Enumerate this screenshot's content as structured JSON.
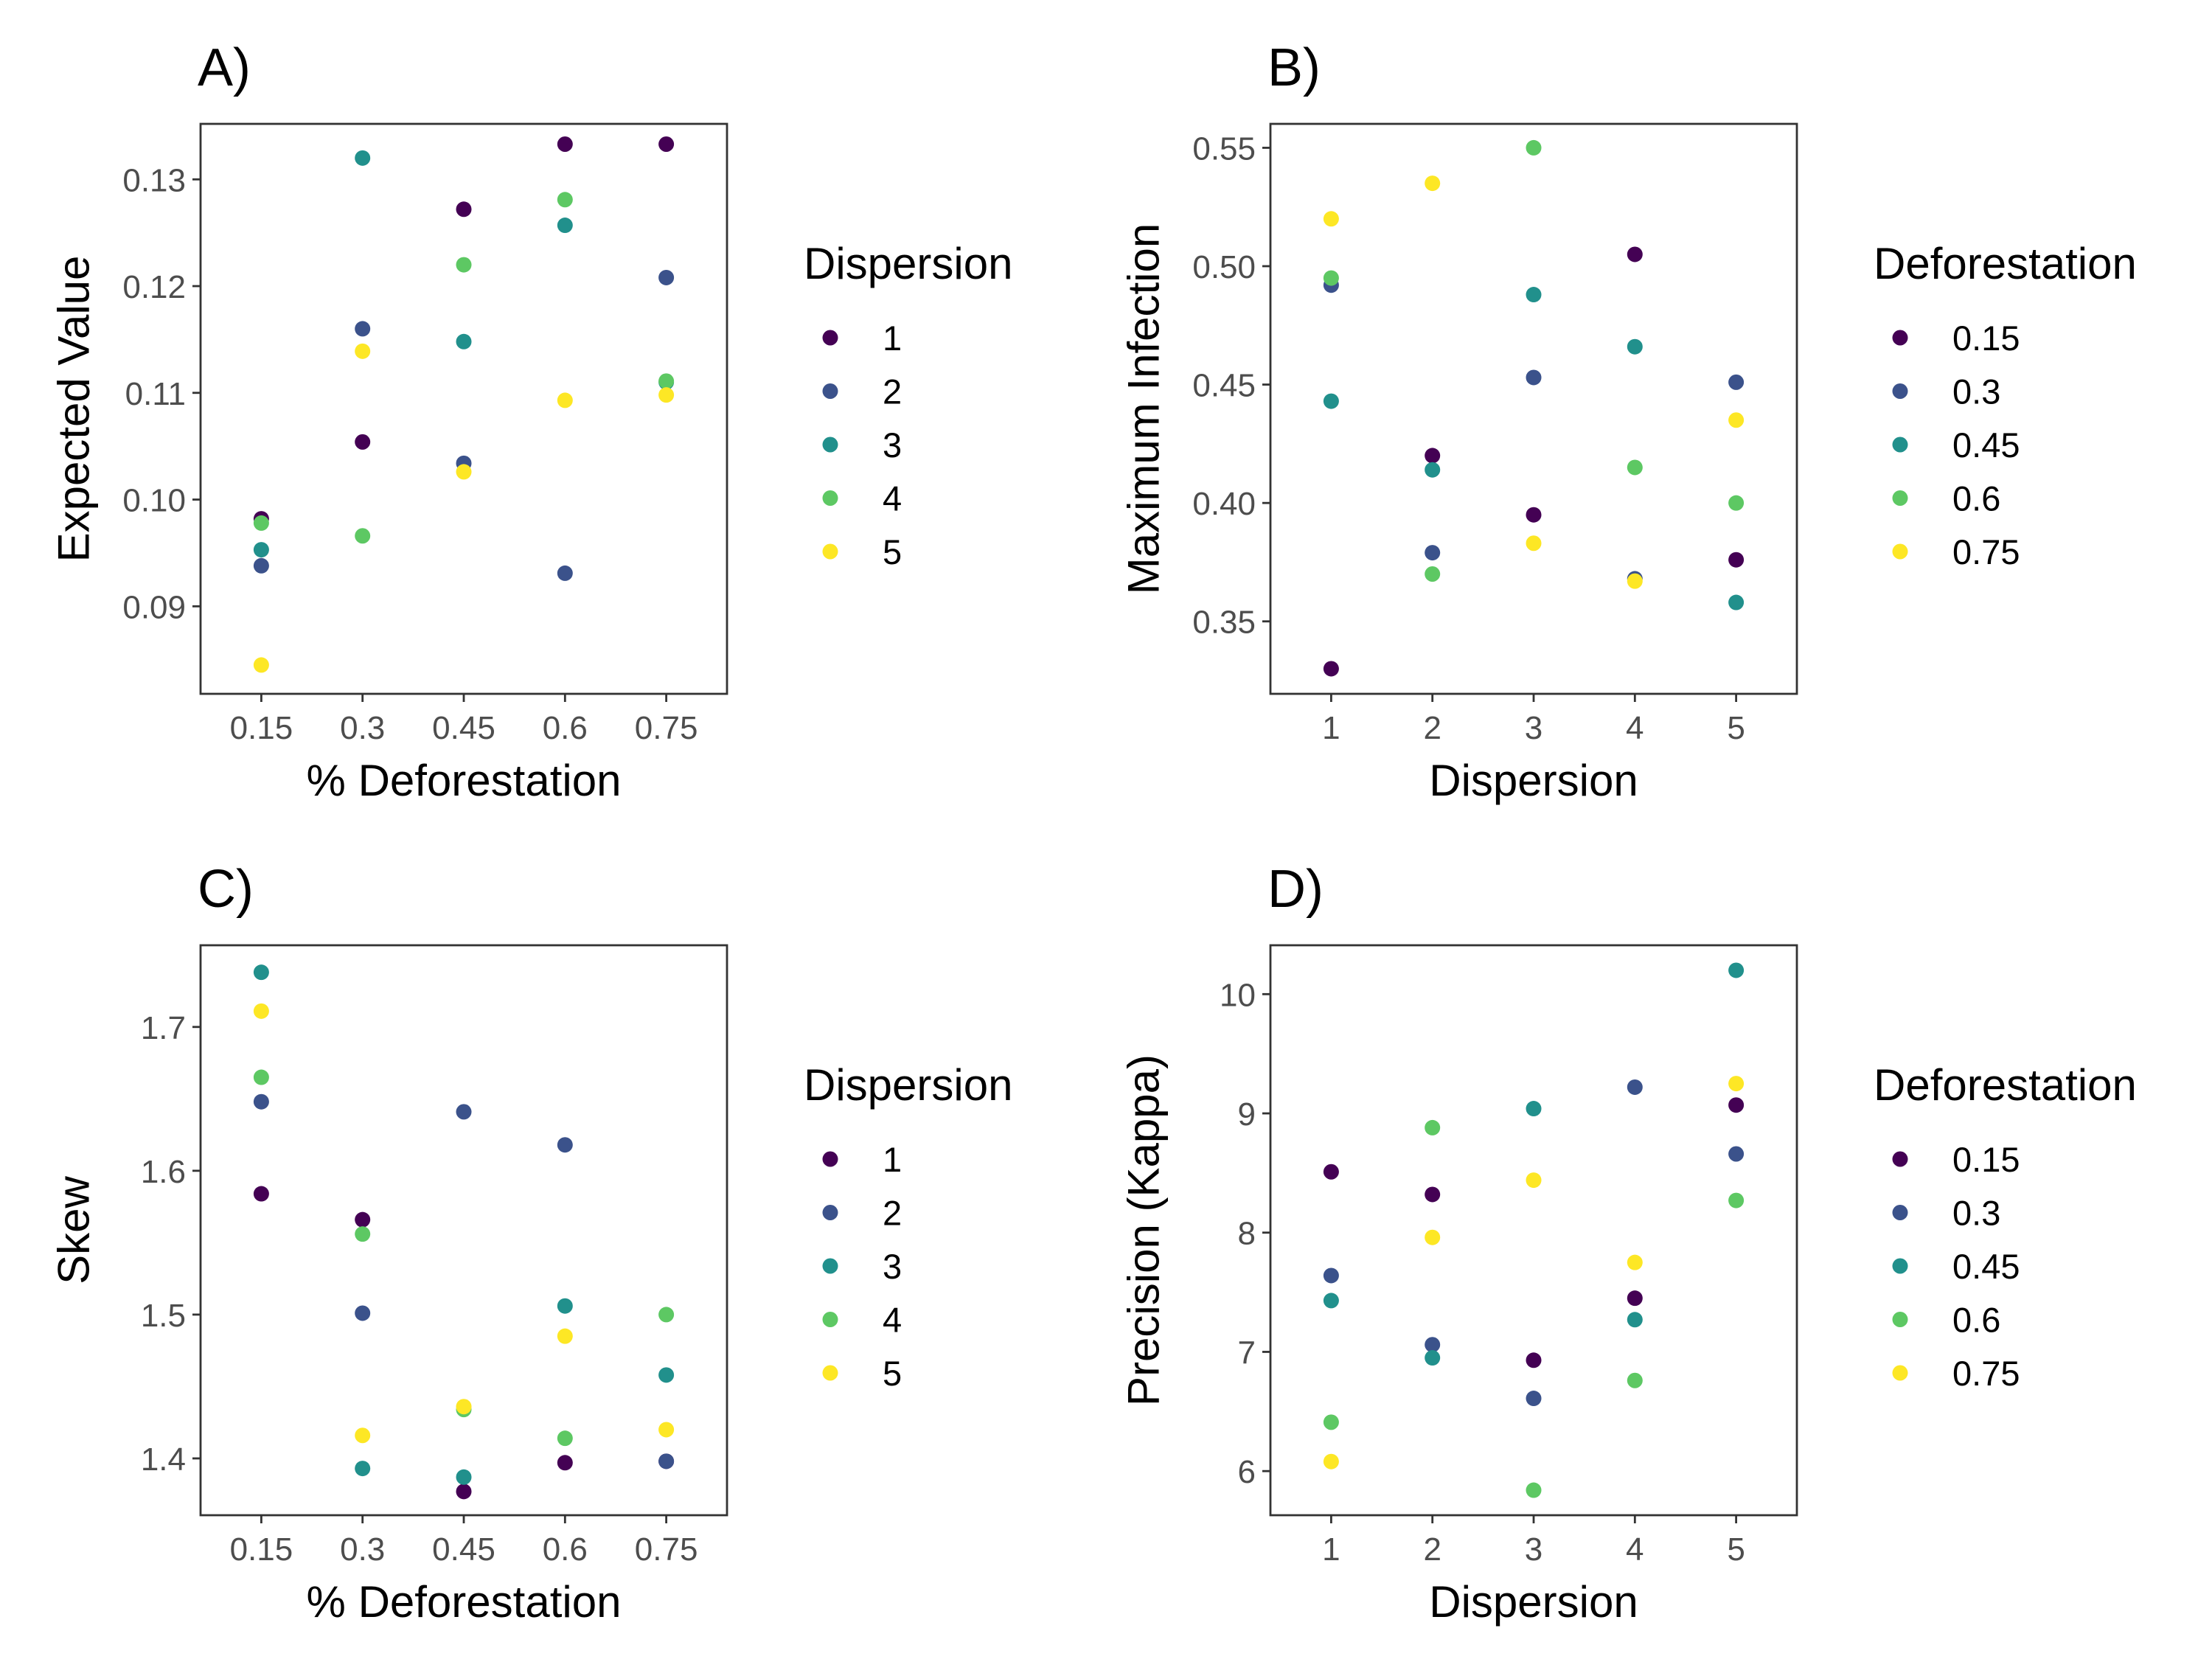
{
  "palette": {
    "1": "#440154",
    "2": "#3b528b",
    "3": "#21908c",
    "4": "#5dc863",
    "5": "#fde725"
  },
  "chart_data": [
    {
      "tag": "A)",
      "type": "scatter",
      "xlabel": "% Deforestation",
      "ylabel": "Expected Value",
      "x_ticks": [
        "0.15",
        "0.3",
        "0.45",
        "0.6",
        "0.75"
      ],
      "y_ticks": [
        "0.09",
        "0.10",
        "0.11",
        "0.12",
        "0.13"
      ],
      "ylim": [
        0.0818,
        0.1352
      ],
      "legend": {
        "title": "Dispersion",
        "labels": [
          "1",
          "2",
          "3",
          "4",
          "5"
        ],
        "placement": "right"
      },
      "series": [
        {
          "name": "1",
          "values": [
            0.0982,
            0.1054,
            0.1272,
            0.1333,
            0.1333
          ]
        },
        {
          "name": "2",
          "values": [
            0.0938,
            0.116,
            0.1034,
            0.0931,
            0.1208
          ]
        },
        {
          "name": "3",
          "values": [
            0.0953,
            0.132,
            0.1148,
            0.1257,
            0.111
          ]
        },
        {
          "name": "4",
          "values": [
            0.0978,
            0.0966,
            0.122,
            0.1281,
            0.1111
          ]
        },
        {
          "name": "5",
          "values": [
            0.0845,
            0.1139,
            0.1026,
            0.1093,
            0.1098
          ]
        }
      ]
    },
    {
      "tag": "B)",
      "type": "scatter",
      "xlabel": "Dispersion",
      "ylabel": "Maximum Infection",
      "x_ticks": [
        "1",
        "2",
        "3",
        "4",
        "5"
      ],
      "y_ticks": [
        "0.35",
        "0.40",
        "0.45",
        "0.50",
        "0.55"
      ],
      "ylim": [
        0.3194,
        0.5601
      ],
      "legend": {
        "title": "Deforestation",
        "labels": [
          "0.15",
          "0.3",
          "0.45",
          "0.6",
          "0.75"
        ],
        "placement": "right"
      },
      "series": [
        {
          "name": "0.15",
          "values": [
            0.33,
            0.42,
            0.395,
            0.505,
            0.376
          ]
        },
        {
          "name": "0.3",
          "values": [
            0.492,
            0.379,
            0.453,
            0.368,
            0.451
          ]
        },
        {
          "name": "0.45",
          "values": [
            0.443,
            0.414,
            0.488,
            0.466,
            0.358
          ]
        },
        {
          "name": "0.6",
          "values": [
            0.495,
            0.37,
            0.55,
            0.415,
            0.4
          ]
        },
        {
          "name": "0.75",
          "values": [
            0.52,
            0.535,
            0.383,
            0.367,
            0.435
          ]
        }
      ]
    },
    {
      "tag": "C)",
      "type": "scatter",
      "xlabel": "% Deforestation",
      "ylabel": "Skew",
      "x_ticks": [
        "0.15",
        "0.3",
        "0.45",
        "0.6",
        "0.75"
      ],
      "y_ticks": [
        "1.4",
        "1.5",
        "1.6",
        "1.7"
      ],
      "ylim": [
        1.3605,
        1.7568
      ],
      "legend": {
        "title": "Dispersion",
        "labels": [
          "1",
          "2",
          "3",
          "4",
          "5"
        ],
        "placement": "right"
      },
      "series": [
        {
          "name": "1",
          "values": [
            1.584,
            1.566,
            1.377,
            1.397,
            1.398
          ]
        },
        {
          "name": "2",
          "values": [
            1.648,
            1.501,
            1.641,
            1.618,
            1.398
          ]
        },
        {
          "name": "3",
          "values": [
            1.738,
            1.393,
            1.387,
            1.506,
            1.458
          ]
        },
        {
          "name": "4",
          "values": [
            1.665,
            1.556,
            1.434,
            1.414,
            1.5
          ]
        },
        {
          "name": "5",
          "values": [
            1.711,
            1.416,
            1.436,
            1.485,
            1.42
          ]
        }
      ]
    },
    {
      "tag": "D)",
      "type": "scatter",
      "xlabel": "Dispersion",
      "ylabel": "Precision (Kappa)",
      "x_ticks": [
        "1",
        "2",
        "3",
        "4",
        "5"
      ],
      "y_ticks": [
        "6",
        "7",
        "8",
        "9",
        "10"
      ],
      "ylim": [
        5.63,
        10.41
      ],
      "legend": {
        "title": "Deforestation",
        "labels": [
          "0.15",
          "0.3",
          "0.45",
          "0.6",
          "0.75"
        ],
        "placement": "right"
      },
      "series": [
        {
          "name": "0.15",
          "values": [
            8.51,
            8.32,
            6.93,
            7.45,
            9.07
          ]
        },
        {
          "name": "0.3",
          "values": [
            7.64,
            7.06,
            6.61,
            9.22,
            8.66
          ]
        },
        {
          "name": "0.45",
          "values": [
            7.43,
            6.95,
            9.04,
            7.27,
            10.2
          ]
        },
        {
          "name": "0.6",
          "values": [
            6.41,
            8.88,
            5.84,
            6.76,
            8.27
          ]
        },
        {
          "name": "0.75",
          "values": [
            6.08,
            7.96,
            8.44,
            7.75,
            9.25
          ]
        }
      ]
    }
  ]
}
